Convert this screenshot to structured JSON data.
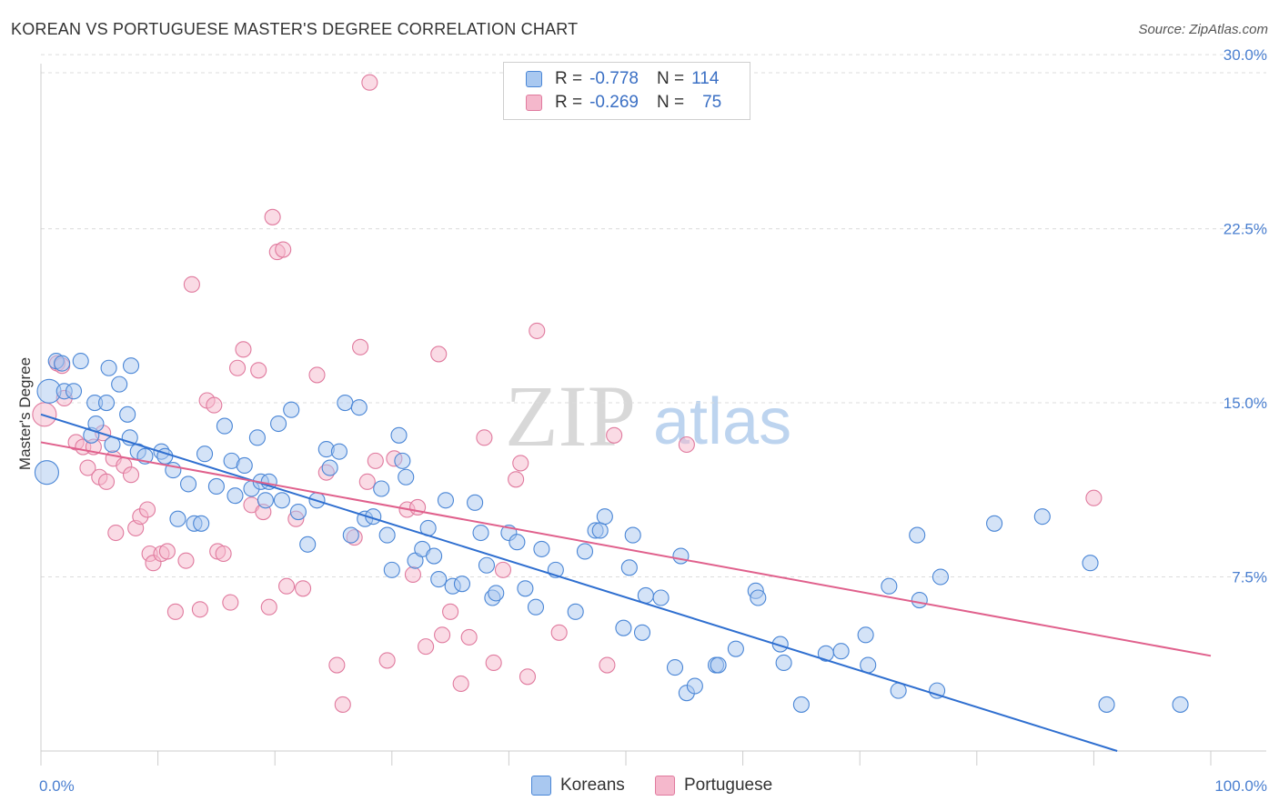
{
  "title": "KOREAN VS PORTUGUESE MASTER'S DEGREE CORRELATION CHART",
  "source": "Source: ZipAtlas.com",
  "watermark": {
    "zip": "ZIP",
    "atlas": "atlas"
  },
  "legend": {
    "rows": [
      {
        "r_label": "R =",
        "r_value": "-0.778",
        "n_label": "N =",
        "n_value": "114"
      },
      {
        "r_label": "R =",
        "r_value": "-0.269",
        "n_label": "N =",
        "n_value": "75"
      }
    ]
  },
  "bottom_legend": {
    "koreans": "Koreans",
    "portuguese": "Portuguese"
  },
  "colors": {
    "koreans_fill": "#a9c8f0",
    "koreans_stroke": "#4a86d6",
    "koreans_line": "#2f6fd0",
    "portuguese_fill": "#f5b8cc",
    "portuguese_stroke": "#e07a9e",
    "portuguese_line": "#e0608c",
    "tick_label": "#4a7fd0",
    "grid": "#dcdcdc"
  },
  "chart_data": {
    "type": "scatter",
    "title": "KOREAN VS PORTUGUESE MASTER'S DEGREE CORRELATION CHART",
    "xlabel": "",
    "ylabel": "Master's Degree",
    "xlim": [
      0,
      100
    ],
    "ylim": [
      0,
      31
    ],
    "x_tick_labels": [
      "0.0%",
      "100.0%"
    ],
    "y_ticks": [
      7.5,
      15.0,
      22.5,
      30.0
    ],
    "y_tick_labels": [
      "7.5%",
      "15.0%",
      "22.5%",
      "30.0%"
    ],
    "grid": true,
    "legend_position": "top-center",
    "series": [
      {
        "name": "Koreans",
        "r": -0.778,
        "n": 114,
        "trend": {
          "x": [
            0,
            92
          ],
          "y": [
            14.5,
            0
          ]
        },
        "points": [
          [
            0.5,
            12.0
          ],
          [
            0.7,
            15.5
          ],
          [
            1.3,
            16.8
          ],
          [
            2.0,
            15.5
          ],
          [
            2.8,
            15.5
          ],
          [
            3.4,
            16.8
          ],
          [
            4.6,
            15.0
          ],
          [
            5.8,
            16.5
          ],
          [
            6.7,
            15.8
          ],
          [
            7.7,
            16.6
          ],
          [
            1.8,
            16.7
          ],
          [
            4.3,
            13.6
          ],
          [
            4.7,
            14.1
          ],
          [
            5.6,
            15.0
          ],
          [
            6.1,
            13.2
          ],
          [
            7.4,
            14.5
          ],
          [
            7.6,
            13.5
          ],
          [
            8.3,
            12.9
          ],
          [
            8.9,
            12.7
          ],
          [
            10.3,
            12.9
          ],
          [
            10.6,
            12.7
          ],
          [
            11.3,
            12.1
          ],
          [
            11.7,
            10.0
          ],
          [
            12.6,
            11.5
          ],
          [
            13.1,
            9.8
          ],
          [
            13.7,
            9.8
          ],
          [
            14.0,
            12.8
          ],
          [
            15.0,
            11.4
          ],
          [
            15.7,
            14.0
          ],
          [
            16.3,
            12.5
          ],
          [
            16.6,
            11.0
          ],
          [
            17.4,
            12.3
          ],
          [
            18.0,
            11.3
          ],
          [
            18.5,
            13.5
          ],
          [
            18.8,
            11.6
          ],
          [
            19.2,
            10.8
          ],
          [
            19.5,
            11.6
          ],
          [
            20.3,
            14.1
          ],
          [
            20.6,
            10.8
          ],
          [
            21.4,
            14.7
          ],
          [
            22.0,
            10.3
          ],
          [
            22.8,
            8.9
          ],
          [
            23.6,
            10.8
          ],
          [
            24.4,
            13.0
          ],
          [
            24.7,
            12.2
          ],
          [
            25.5,
            12.9
          ],
          [
            26.0,
            15.0
          ],
          [
            26.5,
            9.3
          ],
          [
            27.2,
            14.8
          ],
          [
            27.7,
            10.0
          ],
          [
            28.4,
            10.1
          ],
          [
            29.1,
            11.3
          ],
          [
            29.6,
            9.3
          ],
          [
            30.0,
            7.8
          ],
          [
            30.6,
            13.6
          ],
          [
            30.9,
            12.5
          ],
          [
            31.2,
            11.8
          ],
          [
            32.0,
            8.2
          ],
          [
            32.6,
            8.7
          ],
          [
            33.1,
            9.6
          ],
          [
            33.6,
            8.4
          ],
          [
            34.0,
            7.4
          ],
          [
            34.6,
            10.8
          ],
          [
            35.2,
            7.1
          ],
          [
            36.0,
            7.2
          ],
          [
            37.1,
            10.7
          ],
          [
            37.6,
            9.4
          ],
          [
            38.1,
            8.0
          ],
          [
            38.6,
            6.6
          ],
          [
            38.9,
            6.8
          ],
          [
            40.0,
            9.4
          ],
          [
            40.7,
            9.0
          ],
          [
            41.4,
            7.0
          ],
          [
            42.3,
            6.2
          ],
          [
            42.8,
            8.7
          ],
          [
            44.0,
            7.8
          ],
          [
            45.7,
            6.0
          ],
          [
            46.5,
            8.6
          ],
          [
            47.4,
            9.5
          ],
          [
            47.8,
            9.5
          ],
          [
            48.2,
            10.1
          ],
          [
            49.8,
            5.3
          ],
          [
            50.3,
            7.9
          ],
          [
            50.6,
            9.3
          ],
          [
            51.4,
            5.1
          ],
          [
            51.7,
            6.7
          ],
          [
            53.0,
            6.6
          ],
          [
            54.2,
            3.6
          ],
          [
            54.7,
            8.4
          ],
          [
            55.2,
            2.5
          ],
          [
            55.9,
            2.8
          ],
          [
            57.7,
            3.7
          ],
          [
            57.9,
            3.7
          ],
          [
            59.4,
            4.4
          ],
          [
            61.1,
            6.9
          ],
          [
            61.3,
            6.6
          ],
          [
            63.2,
            4.6
          ],
          [
            63.5,
            3.8
          ],
          [
            65.0,
            2.0
          ],
          [
            67.1,
            4.2
          ],
          [
            68.4,
            4.3
          ],
          [
            70.5,
            5.0
          ],
          [
            72.5,
            7.1
          ],
          [
            73.3,
            2.6
          ],
          [
            74.9,
            9.3
          ],
          [
            75.1,
            6.5
          ],
          [
            76.6,
            2.6
          ],
          [
            76.9,
            7.5
          ],
          [
            89.7,
            8.1
          ],
          [
            91.1,
            2.0
          ],
          [
            97.4,
            2.0
          ],
          [
            81.5,
            9.8
          ],
          [
            85.6,
            10.1
          ],
          [
            70.7,
            3.7
          ]
        ]
      },
      {
        "name": "Portuguese",
        "r": -0.269,
        "n": 75,
        "trend": {
          "x": [
            0,
            100
          ],
          "y": [
            13.3,
            4.1
          ]
        },
        "points": [
          [
            0.3,
            14.5
          ],
          [
            1.4,
            16.7
          ],
          [
            1.8,
            16.6
          ],
          [
            2.0,
            15.2
          ],
          [
            3.0,
            13.3
          ],
          [
            3.6,
            13.1
          ],
          [
            4.0,
            12.2
          ],
          [
            4.5,
            13.1
          ],
          [
            5.0,
            11.8
          ],
          [
            5.3,
            13.7
          ],
          [
            5.6,
            11.6
          ],
          [
            6.2,
            12.6
          ],
          [
            6.4,
            9.4
          ],
          [
            7.1,
            12.3
          ],
          [
            7.7,
            11.9
          ],
          [
            8.1,
            9.6
          ],
          [
            8.5,
            10.1
          ],
          [
            9.1,
            10.4
          ],
          [
            9.3,
            8.5
          ],
          [
            9.6,
            8.1
          ],
          [
            10.3,
            8.5
          ],
          [
            10.8,
            8.6
          ],
          [
            11.5,
            6.0
          ],
          [
            12.4,
            8.2
          ],
          [
            12.9,
            20.1
          ],
          [
            13.6,
            6.1
          ],
          [
            14.2,
            15.1
          ],
          [
            14.8,
            14.9
          ],
          [
            15.1,
            8.6
          ],
          [
            15.6,
            8.5
          ],
          [
            16.2,
            6.4
          ],
          [
            16.8,
            16.5
          ],
          [
            17.3,
            17.3
          ],
          [
            18.0,
            10.6
          ],
          [
            18.6,
            16.4
          ],
          [
            19.0,
            10.3
          ],
          [
            19.5,
            6.2
          ],
          [
            19.8,
            23.0
          ],
          [
            20.2,
            21.5
          ],
          [
            20.7,
            21.6
          ],
          [
            21.0,
            7.1
          ],
          [
            21.8,
            10.0
          ],
          [
            22.4,
            7.0
          ],
          [
            23.6,
            16.2
          ],
          [
            24.4,
            12.0
          ],
          [
            25.3,
            3.7
          ],
          [
            25.8,
            2.0
          ],
          [
            26.8,
            9.2
          ],
          [
            27.3,
            17.4
          ],
          [
            27.9,
            11.6
          ],
          [
            28.1,
            28.8
          ],
          [
            28.6,
            12.5
          ],
          [
            29.6,
            3.9
          ],
          [
            30.2,
            12.6
          ],
          [
            31.3,
            10.4
          ],
          [
            31.8,
            7.6
          ],
          [
            32.2,
            10.5
          ],
          [
            32.9,
            4.5
          ],
          [
            34.0,
            17.1
          ],
          [
            34.3,
            5.0
          ],
          [
            35.0,
            6.0
          ],
          [
            35.9,
            2.9
          ],
          [
            36.6,
            4.9
          ],
          [
            37.9,
            13.5
          ],
          [
            38.7,
            3.8
          ],
          [
            39.5,
            7.8
          ],
          [
            40.6,
            11.7
          ],
          [
            41.0,
            12.4
          ],
          [
            41.6,
            3.2
          ],
          [
            42.4,
            18.1
          ],
          [
            44.3,
            5.1
          ],
          [
            48.4,
            3.7
          ],
          [
            49.0,
            13.6
          ],
          [
            55.2,
            13.2
          ],
          [
            90.0,
            10.9
          ]
        ]
      }
    ]
  }
}
